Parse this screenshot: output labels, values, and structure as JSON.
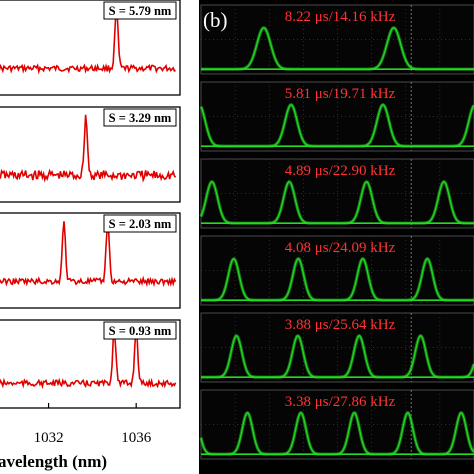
{
  "chart_data": [
    {
      "type": "line",
      "panel": "a",
      "xlabel": "avelength (nm)",
      "xticks": [
        1032,
        1036
      ],
      "xlim": [
        1029.6,
        1038.0
      ],
      "color": "#e00000",
      "subplots": [
        {
          "annotation": "S = 5.79 nm",
          "peaks_nm": [
            1035.1
          ]
        },
        {
          "annotation": "S = 3.29 nm",
          "peaks_nm": [
            1033.7
          ]
        },
        {
          "annotation": "S = 2.03 nm",
          "peaks_nm": [
            1032.7,
            1034.7
          ]
        },
        {
          "annotation": "S = 0.93 nm",
          "peaks_nm": [
            1035.0,
            1036.0
          ]
        }
      ]
    },
    {
      "type": "line",
      "panel": "b",
      "panel_label": "(b)",
      "trace_color": "#22dd22",
      "label_color": "#ff3333",
      "traces": [
        {
          "label": "8.22 μs/14.16 kHz",
          "period_us": 8.22,
          "frequency_khz": 14.16
        },
        {
          "label": "5.81 μs/19.71 kHz",
          "period_us": 5.81,
          "frequency_khz": 19.71
        },
        {
          "label": "4.89 μs/22.90 kHz",
          "period_us": 4.89,
          "frequency_khz": 22.9
        },
        {
          "label": "4.08 μs/24.09 kHz",
          "period_us": 4.08,
          "frequency_khz": 24.09
        },
        {
          "label": "3.88 μs/25.64 kHz",
          "period_us": 3.88,
          "frequency_khz": 25.64
        },
        {
          "label": "3.38 μs/27.86 kHz",
          "period_us": 3.38,
          "frequency_khz": 27.86
        }
      ]
    }
  ]
}
